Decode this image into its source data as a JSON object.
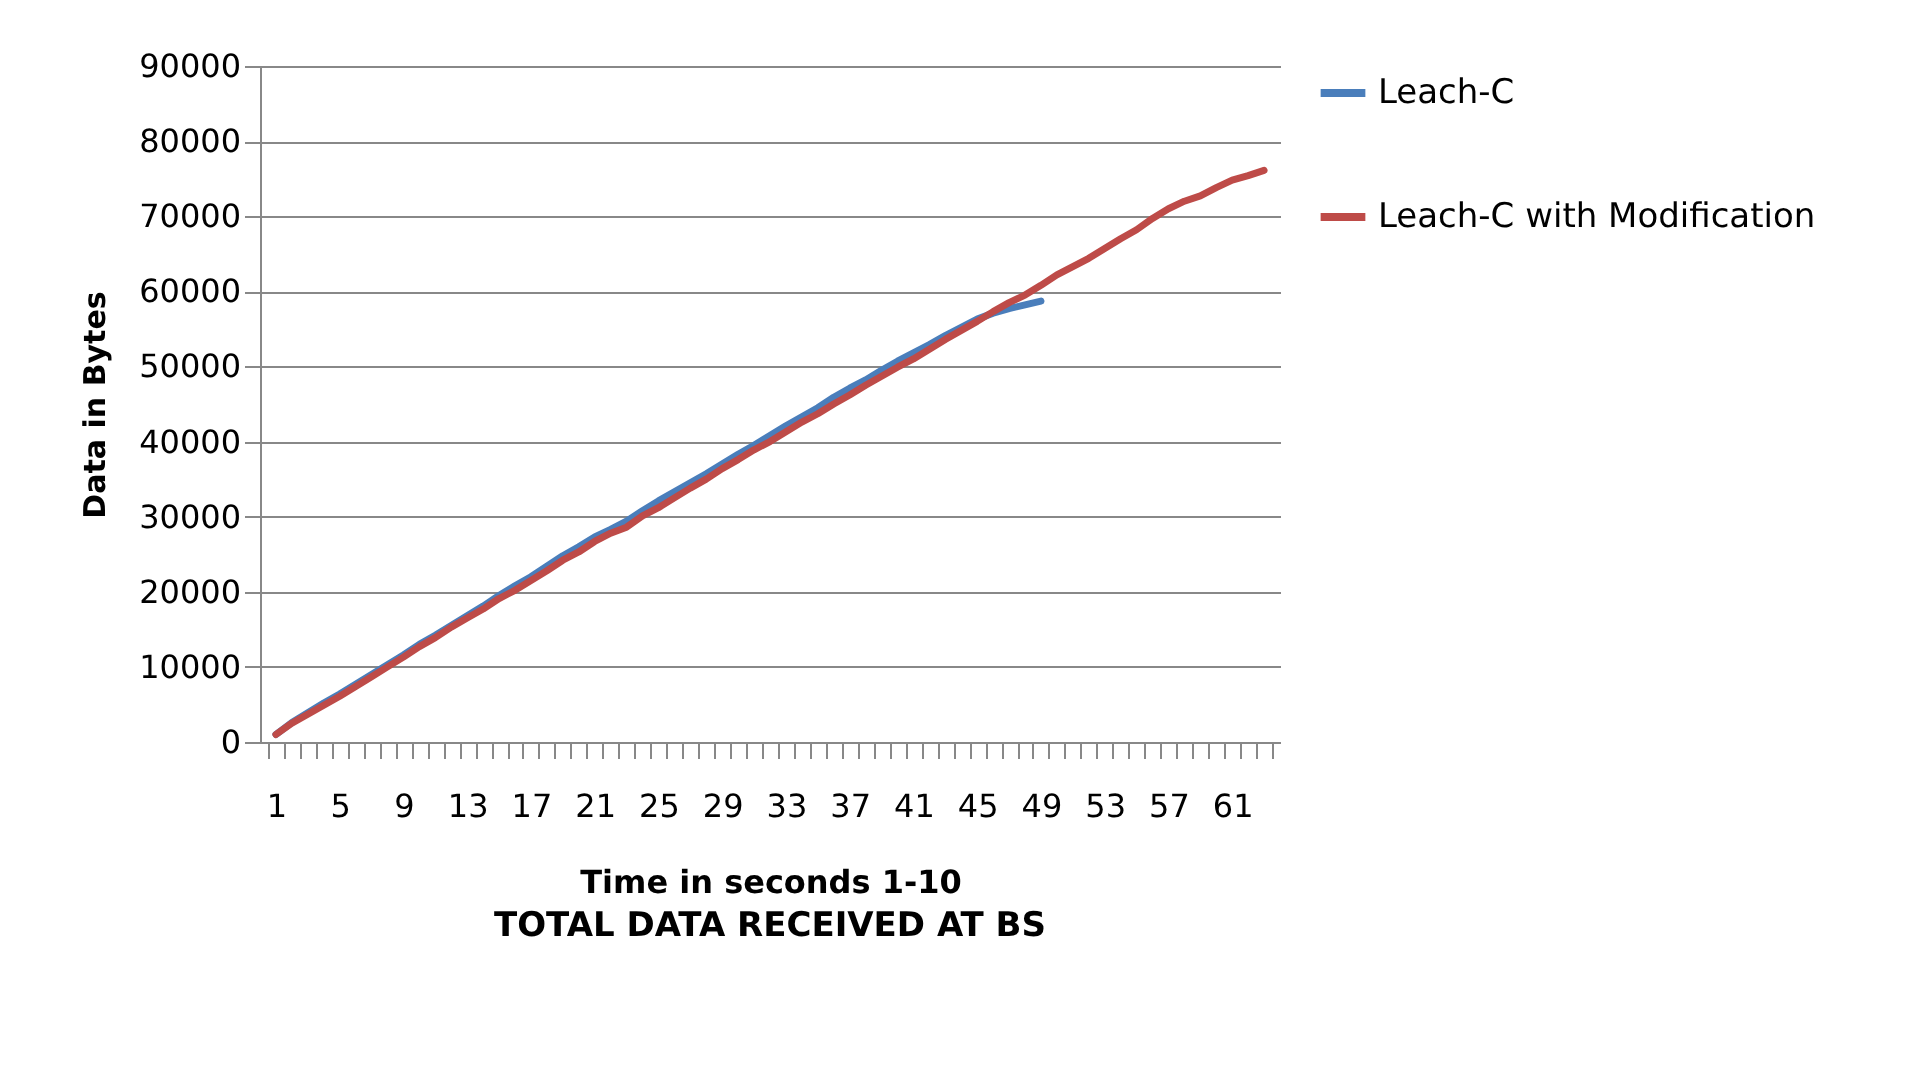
{
  "chart_data": {
    "type": "line",
    "title": "TOTAL DATA RECEIVED AT BS",
    "xlabel": "Time in seconds 1-10",
    "ylabel": "Data in Bytes",
    "categories": [
      "1",
      null,
      null,
      null,
      "5",
      null,
      null,
      null,
      "9",
      null,
      null,
      null,
      "13",
      null,
      null,
      null,
      "17",
      null,
      null,
      null,
      "21",
      null,
      null,
      null,
      "25",
      null,
      null,
      null,
      "29",
      null,
      null,
      null,
      "33",
      null,
      null,
      null,
      "37",
      null,
      null,
      null,
      "41",
      null,
      null,
      null,
      "45",
      null,
      null,
      null,
      "49",
      null,
      null,
      null,
      "53",
      null,
      null,
      null,
      "57",
      null,
      null,
      null,
      "61",
      null,
      null
    ],
    "series": [
      {
        "name": "Leach-C",
        "color": "#4a7ebb",
        "values": [
          1000,
          2600,
          3900,
          5200,
          6400,
          7700,
          9000,
          10300,
          11600,
          13000,
          14200,
          15500,
          16800,
          18100,
          19500,
          20800,
          22000,
          23400,
          24800,
          26000,
          27300,
          28300,
          29400,
          30800,
          32100,
          33300,
          34500,
          35700,
          37000,
          38300,
          39500,
          40800,
          42100,
          43300,
          44500,
          45900,
          47100,
          48200,
          49500,
          50700,
          51800,
          52900,
          54100,
          55200,
          56300,
          57100,
          57700,
          58200,
          58700,
          null,
          null,
          null,
          null,
          null,
          null,
          null,
          null,
          null,
          null,
          null,
          null,
          null,
          null
        ]
      },
      {
        "name": "Leach-C with Modification",
        "color": "#be4b48",
        "values": [
          1000,
          2500,
          3700,
          4900,
          6100,
          7400,
          8700,
          10000,
          11300,
          12700,
          13900,
          15300,
          16500,
          17700,
          19100,
          20200,
          21500,
          22800,
          24200,
          25300,
          26700,
          27800,
          28600,
          30100,
          31200,
          32500,
          33800,
          35000,
          36400,
          37600,
          38900,
          40000,
          41300,
          42600,
          43700,
          45000,
          46200,
          47500,
          48700,
          49900,
          51000,
          52300,
          53600,
          54800,
          56000,
          57300,
          58500,
          59500,
          60800,
          62200,
          63300,
          64400,
          65700,
          67000,
          68200,
          69700,
          71000,
          72000,
          72700,
          73800,
          74800,
          75400,
          76100
        ]
      }
    ],
    "ylim": [
      0,
      90000
    ],
    "yticks": [
      0,
      10000,
      20000,
      30000,
      40000,
      50000,
      60000,
      70000,
      80000,
      90000
    ],
    "grid": "y",
    "legend": "right",
    "marker": "none",
    "line_style": "solid"
  }
}
